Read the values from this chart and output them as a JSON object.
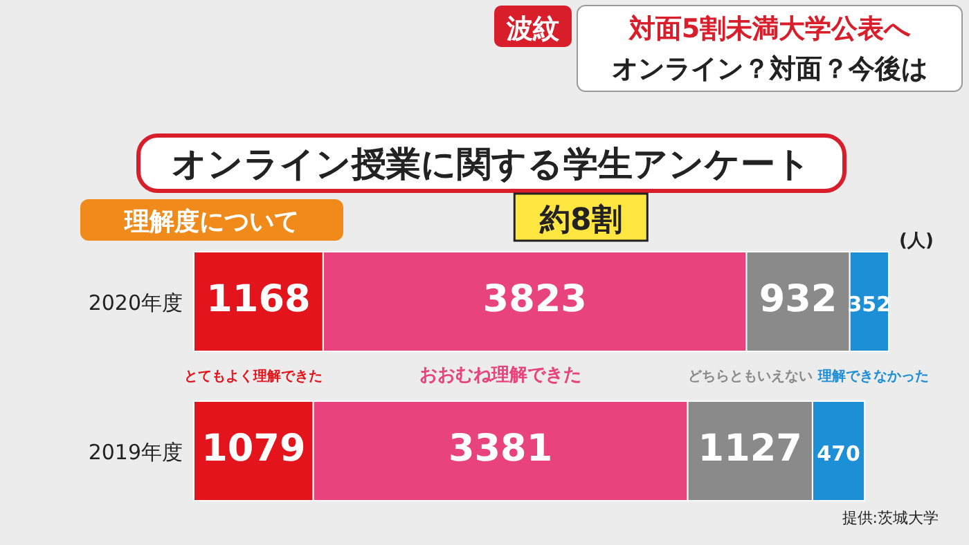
{
  "chart_data": {
    "type": "bar",
    "orientation": "horizontal",
    "stacked": true,
    "data_labels": true,
    "title": "オンライン授業に関する学生アンケート",
    "subtitle": "理解度について",
    "categories": [
      "2020年度",
      "2019年度"
    ],
    "series": [
      {
        "name": "とてもよく理解できた",
        "color": "#e3141b",
        "values": [
          1168,
          1079
        ]
      },
      {
        "name": "おおむね理解できた",
        "color": "#e8437c",
        "values": [
          3823,
          3381
        ]
      },
      {
        "name": "どちらともいえない",
        "color": "#8a8a8a",
        "values": [
          932,
          1127
        ]
      },
      {
        "name": "理解できなかった",
        "color": "#1c8fd6",
        "values": [
          352,
          470
        ]
      }
    ],
    "annotations": [
      "波紋",
      "対面5割未満大学公表へ",
      "オンライン？対面？今後は",
      "約8割",
      "(人)",
      "提供:茨城大学"
    ]
  }
}
